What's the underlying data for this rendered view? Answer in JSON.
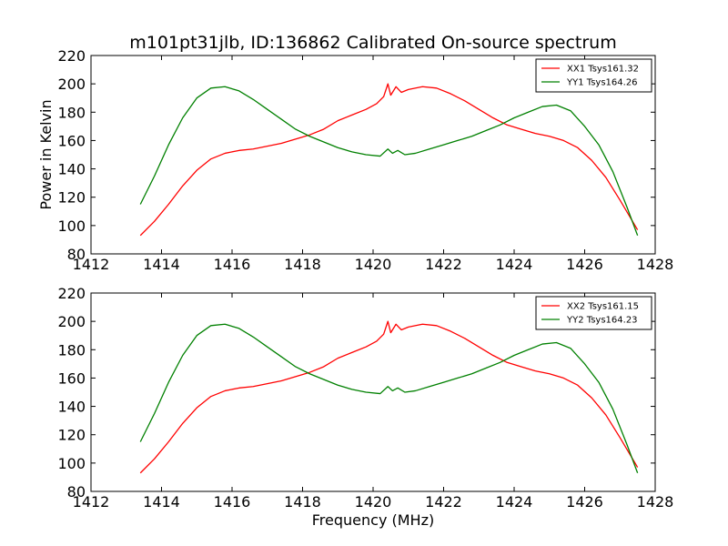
{
  "figure": {
    "title": "m101pt31jlb, ID:136862 Calibrated On-source spectrum",
    "xlabel": "Frequency (MHz)",
    "ylabel": "Power in Kelvin"
  },
  "chart_data": [
    {
      "type": "line",
      "xlim": [
        1412,
        1428
      ],
      "ylim": [
        80,
        220
      ],
      "x_ticks": [
        1412,
        1414,
        1416,
        1418,
        1420,
        1422,
        1424,
        1426,
        1428
      ],
      "y_ticks": [
        80,
        100,
        120,
        140,
        160,
        180,
        200,
        220
      ],
      "ylabel": "Power in Kelvin",
      "xlabel": "",
      "grid": false,
      "legend_position": "top-right",
      "series": [
        {
          "name": "XX1 Tsys161.32",
          "color": "#ff0000",
          "points": [
            [
              1413.4,
              93
            ],
            [
              1413.8,
              103
            ],
            [
              1414.2,
              115
            ],
            [
              1414.6,
              128
            ],
            [
              1415.0,
              139
            ],
            [
              1415.4,
              147
            ],
            [
              1415.8,
              151
            ],
            [
              1416.2,
              153
            ],
            [
              1416.6,
              154
            ],
            [
              1417.0,
              156
            ],
            [
              1417.4,
              158
            ],
            [
              1417.8,
              161
            ],
            [
              1418.2,
              164
            ],
            [
              1418.6,
              168
            ],
            [
              1419.0,
              174
            ],
            [
              1419.4,
              178
            ],
            [
              1419.8,
              182
            ],
            [
              1420.1,
              186
            ],
            [
              1420.3,
              191
            ],
            [
              1420.42,
              200
            ],
            [
              1420.5,
              192
            ],
            [
              1420.65,
              198
            ],
            [
              1420.8,
              194
            ],
            [
              1421.0,
              196
            ],
            [
              1421.4,
              198
            ],
            [
              1421.8,
              197
            ],
            [
              1422.2,
              193
            ],
            [
              1422.6,
              188
            ],
            [
              1423.0,
              182
            ],
            [
              1423.4,
              176
            ],
            [
              1423.8,
              171
            ],
            [
              1424.2,
              168
            ],
            [
              1424.6,
              165
            ],
            [
              1425.0,
              163
            ],
            [
              1425.4,
              160
            ],
            [
              1425.8,
              155
            ],
            [
              1426.2,
              146
            ],
            [
              1426.6,
              134
            ],
            [
              1427.0,
              118
            ],
            [
              1427.5,
              97
            ]
          ]
        },
        {
          "name": "YY1 Tsys164.26",
          "color": "#008000",
          "points": [
            [
              1413.4,
              115
            ],
            [
              1413.8,
              135
            ],
            [
              1414.2,
              157
            ],
            [
              1414.6,
              176
            ],
            [
              1415.0,
              190
            ],
            [
              1415.4,
              197
            ],
            [
              1415.8,
              198
            ],
            [
              1416.2,
              195
            ],
            [
              1416.6,
              189
            ],
            [
              1417.0,
              182
            ],
            [
              1417.4,
              175
            ],
            [
              1417.8,
              168
            ],
            [
              1418.2,
              163
            ],
            [
              1418.6,
              159
            ],
            [
              1419.0,
              155
            ],
            [
              1419.4,
              152
            ],
            [
              1419.8,
              150
            ],
            [
              1420.2,
              149
            ],
            [
              1420.42,
              154
            ],
            [
              1420.55,
              151
            ],
            [
              1420.7,
              153
            ],
            [
              1420.9,
              150
            ],
            [
              1421.2,
              151
            ],
            [
              1421.6,
              154
            ],
            [
              1422.0,
              157
            ],
            [
              1422.4,
              160
            ],
            [
              1422.8,
              163
            ],
            [
              1423.2,
              167
            ],
            [
              1423.6,
              171
            ],
            [
              1424.0,
              176
            ],
            [
              1424.4,
              180
            ],
            [
              1424.8,
              184
            ],
            [
              1425.2,
              185
            ],
            [
              1425.6,
              181
            ],
            [
              1426.0,
              170
            ],
            [
              1426.4,
              157
            ],
            [
              1426.8,
              138
            ],
            [
              1427.2,
              113
            ],
            [
              1427.5,
              93
            ]
          ]
        }
      ]
    },
    {
      "type": "line",
      "xlim": [
        1412,
        1428
      ],
      "ylim": [
        80,
        220
      ],
      "x_ticks": [
        1412,
        1414,
        1416,
        1418,
        1420,
        1422,
        1424,
        1426,
        1428
      ],
      "y_ticks": [
        80,
        100,
        120,
        140,
        160,
        180,
        200,
        220
      ],
      "xlabel": "Frequency (MHz)",
      "ylabel": "",
      "grid": false,
      "legend_position": "top-right",
      "series": [
        {
          "name": "XX2 Tsys161.15",
          "color": "#ff0000",
          "points": [
            [
              1413.4,
              93
            ],
            [
              1413.8,
              103
            ],
            [
              1414.2,
              115
            ],
            [
              1414.6,
              128
            ],
            [
              1415.0,
              139
            ],
            [
              1415.4,
              147
            ],
            [
              1415.8,
              151
            ],
            [
              1416.2,
              153
            ],
            [
              1416.6,
              154
            ],
            [
              1417.0,
              156
            ],
            [
              1417.4,
              158
            ],
            [
              1417.8,
              161
            ],
            [
              1418.2,
              164
            ],
            [
              1418.6,
              168
            ],
            [
              1419.0,
              174
            ],
            [
              1419.4,
              178
            ],
            [
              1419.8,
              182
            ],
            [
              1420.1,
              186
            ],
            [
              1420.3,
              191
            ],
            [
              1420.42,
              200
            ],
            [
              1420.5,
              192
            ],
            [
              1420.65,
              198
            ],
            [
              1420.8,
              194
            ],
            [
              1421.0,
              196
            ],
            [
              1421.4,
              198
            ],
            [
              1421.8,
              197
            ],
            [
              1422.2,
              193
            ],
            [
              1422.6,
              188
            ],
            [
              1423.0,
              182
            ],
            [
              1423.4,
              176
            ],
            [
              1423.8,
              171
            ],
            [
              1424.2,
              168
            ],
            [
              1424.6,
              165
            ],
            [
              1425.0,
              163
            ],
            [
              1425.4,
              160
            ],
            [
              1425.8,
              155
            ],
            [
              1426.2,
              146
            ],
            [
              1426.6,
              134
            ],
            [
              1427.0,
              118
            ],
            [
              1427.5,
              97
            ]
          ]
        },
        {
          "name": "YY2 Tsys164.23",
          "color": "#008000",
          "points": [
            [
              1413.4,
              115
            ],
            [
              1413.8,
              135
            ],
            [
              1414.2,
              157
            ],
            [
              1414.6,
              176
            ],
            [
              1415.0,
              190
            ],
            [
              1415.4,
              197
            ],
            [
              1415.8,
              198
            ],
            [
              1416.2,
              195
            ],
            [
              1416.6,
              189
            ],
            [
              1417.0,
              182
            ],
            [
              1417.4,
              175
            ],
            [
              1417.8,
              168
            ],
            [
              1418.2,
              163
            ],
            [
              1418.6,
              159
            ],
            [
              1419.0,
              155
            ],
            [
              1419.4,
              152
            ],
            [
              1419.8,
              150
            ],
            [
              1420.2,
              149
            ],
            [
              1420.42,
              154
            ],
            [
              1420.55,
              151
            ],
            [
              1420.7,
              153
            ],
            [
              1420.9,
              150
            ],
            [
              1421.2,
              151
            ],
            [
              1421.6,
              154
            ],
            [
              1422.0,
              157
            ],
            [
              1422.4,
              160
            ],
            [
              1422.8,
              163
            ],
            [
              1423.2,
              167
            ],
            [
              1423.6,
              171
            ],
            [
              1424.0,
              176
            ],
            [
              1424.4,
              180
            ],
            [
              1424.8,
              184
            ],
            [
              1425.2,
              185
            ],
            [
              1425.6,
              181
            ],
            [
              1426.0,
              170
            ],
            [
              1426.4,
              157
            ],
            [
              1426.8,
              138
            ],
            [
              1427.2,
              113
            ],
            [
              1427.5,
              93
            ]
          ]
        }
      ]
    }
  ]
}
